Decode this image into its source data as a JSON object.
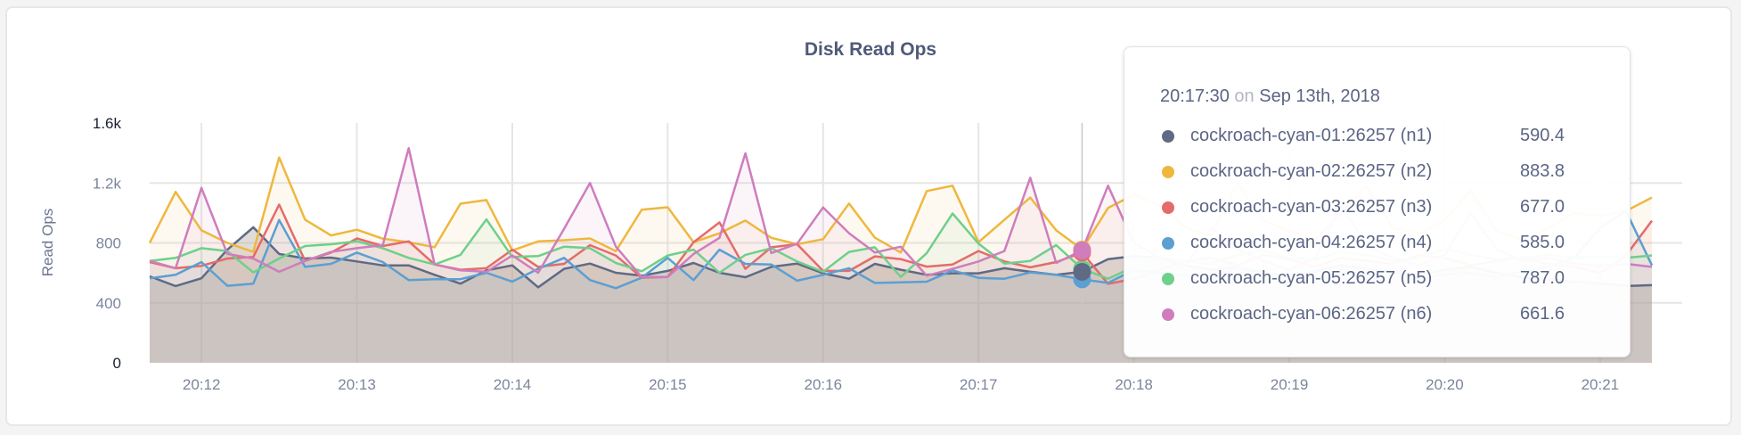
{
  "chart_data": {
    "type": "area",
    "title": "Disk Read Ops",
    "ylabel": "Read Ops",
    "xlabel": "",
    "ylim": [
      0,
      1600
    ],
    "y_ticks": [
      "0",
      "400",
      "800",
      "1.2k",
      "1.6k"
    ],
    "y_tick_values": [
      0,
      400,
      800,
      1200,
      1600
    ],
    "x_ticks": [
      "20:12",
      "20:13",
      "20:14",
      "20:15",
      "20:16",
      "20:17",
      "20:18",
      "20:19",
      "20:20",
      "20:21"
    ],
    "x_start": "20:11:40",
    "x_end": "20:21:20",
    "x_interval_seconds": 10,
    "grid": true,
    "series": [
      {
        "name": "cockroach-cyan-01:26257 (n1)",
        "color": "#5f6a85",
        "values": [
          577,
          512,
          564,
          755,
          904,
          726,
          696,
          702,
          676,
          650,
          650,
          587,
          528,
          617,
          650,
          504,
          627,
          662,
          601,
          581,
          613,
          666,
          601,
          571,
          640,
          662,
          597,
          561,
          660,
          621,
          587,
          597,
          597,
          631,
          607,
          587,
          607,
          692,
          712,
          700,
          650,
          620,
          640,
          600,
          580,
          610,
          650,
          630,
          600,
          590,
          620,
          640,
          600,
          570,
          560,
          540,
          530,
          512,
          518
        ]
      },
      {
        "name": "cockroach-cyan-02:26257 (n2)",
        "color": "#efb73e",
        "values": [
          800,
          1140,
          884,
          800,
          740,
          1370,
          955,
          850,
          888,
          828,
          805,
          771,
          1062,
          1086,
          750,
          810,
          818,
          830,
          745,
          1022,
          1038,
          805,
          864,
          949,
          834,
          791,
          825,
          1063,
          835,
          736,
          1146,
          1182,
          805,
          954,
          1103,
          884,
          756,
          1033,
          1121,
          1050,
          900,
          850,
          1200,
          950,
          880,
          820,
          1000,
          1180,
          900,
          860,
          950,
          1150,
          880,
          820,
          900,
          1000,
          980,
          1013,
          1103
        ]
      },
      {
        "name": "cockroach-cyan-03:26257 (n3)",
        "color": "#e46b6b",
        "values": [
          672,
          631,
          647,
          696,
          706,
          1056,
          680,
          735,
          830,
          779,
          811,
          656,
          621,
          631,
          755,
          640,
          660,
          785,
          716,
          568,
          573,
          805,
          937,
          627,
          771,
          791,
          613,
          613,
          710,
          692,
          642,
          656,
          746,
          676,
          637,
          672,
          736,
          527,
          560,
          620,
          680,
          700,
          650,
          720,
          690,
          640,
          700,
          680,
          660,
          720,
          700,
          650,
          680,
          700,
          660,
          640,
          600,
          716,
          948
        ]
      },
      {
        "name": "cockroach-cyan-04:26257 (n4)",
        "color": "#5b9fd3",
        "values": [
          564,
          587,
          672,
          514,
          528,
          953,
          640,
          660,
          735,
          672,
          552,
          558,
          558,
          601,
          542,
          627,
          700,
          552,
          498,
          568,
          700,
          552,
          755,
          660,
          656,
          548,
          587,
          631,
          533,
          537,
          541,
          617,
          567,
          561,
          603,
          587,
          557,
          533,
          620,
          600,
          580,
          560,
          640,
          590,
          570,
          610,
          600,
          580,
          620,
          560,
          590,
          600,
          570,
          610,
          640,
          700,
          900,
          1013,
          650
        ]
      },
      {
        "name": "cockroach-cyan-05:26257 (n5)",
        "color": "#6fcf8c",
        "values": [
          680,
          700,
          765,
          745,
          603,
          696,
          779,
          791,
          811,
          765,
          700,
          656,
          720,
          957,
          706,
          712,
          775,
          765,
          666,
          611,
          716,
          755,
          601,
          720,
          765,
          676,
          607,
          740,
          771,
          573,
          732,
          997,
          795,
          662,
          680,
          785,
          627,
          561,
          640,
          700,
          680,
          660,
          720,
          750,
          700,
          690,
          740,
          720,
          680,
          700,
          760,
          720,
          690,
          700,
          720,
          700,
          710,
          700,
          716
        ]
      },
      {
        "name": "cockroach-cyan-06:26257 (n6)",
        "color": "#cf7dbd",
        "values": [
          680,
          631,
          1167,
          726,
          696,
          607,
          680,
          740,
          765,
          785,
          1432,
          656,
          617,
          607,
          716,
          601,
          894,
          1200,
          775,
          573,
          573,
          726,
          834,
          1398,
          732,
          795,
          1037,
          865,
          736,
          775,
          581,
          627,
          676,
          746,
          1235,
          666,
          750,
          1182,
          800,
          700,
          650,
          900,
          760,
          680,
          620,
          700,
          1050,
          780,
          700,
          650,
          720,
          1000,
          760,
          680,
          700,
          660,
          650,
          660,
          640
        ]
      }
    ]
  },
  "tooltip": {
    "time": "20:17:30",
    "on": "on",
    "date": "Sep 13th, 2018",
    "rows": [
      {
        "label": "cockroach-cyan-01:26257 (n1)",
        "value": "590.4",
        "color": "#5f6a85"
      },
      {
        "label": "cockroach-cyan-02:26257 (n2)",
        "value": "883.8",
        "color": "#efb73e"
      },
      {
        "label": "cockroach-cyan-03:26257 (n3)",
        "value": "677.0",
        "color": "#e46b6b"
      },
      {
        "label": "cockroach-cyan-04:26257 (n4)",
        "value": "585.0",
        "color": "#5b9fd3"
      },
      {
        "label": "cockroach-cyan-05:26257 (n5)",
        "value": "787.0",
        "color": "#6fcf8c"
      },
      {
        "label": "cockroach-cyan-06:26257 (n6)",
        "value": "661.6",
        "color": "#cf7dbd"
      }
    ]
  }
}
